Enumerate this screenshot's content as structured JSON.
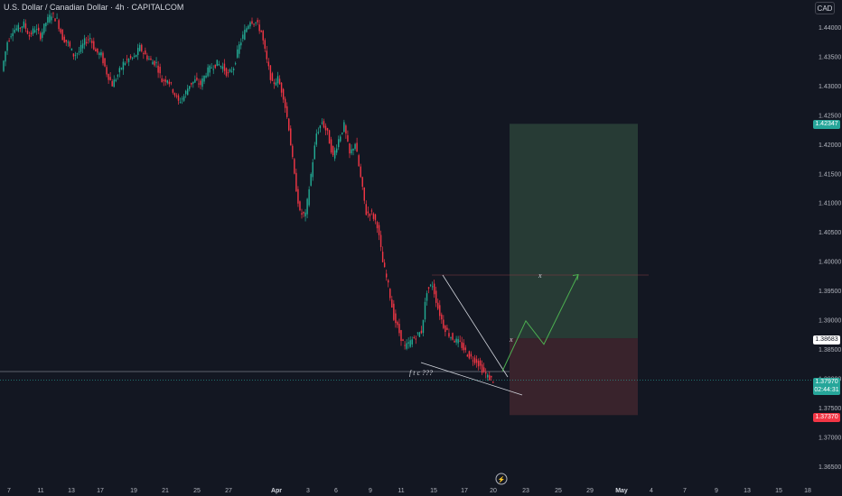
{
  "header": {
    "title": "U.S. Dollar / Canadian Dollar · 4h · CAPITALCOM",
    "currency": "CAD"
  },
  "price_tags": {
    "target": "1.42347",
    "entry": "1.38683",
    "last_price": "1.37970",
    "countdown": "02:44:31",
    "stop": "1.37370"
  },
  "annotations": {
    "pattern_text": "f t c ???",
    "mark_upper": "x",
    "mark_lower": "x"
  },
  "colors": {
    "up": "#22ab94",
    "down": "#f23645",
    "target_zone": "#2a3f37",
    "stop_zone": "#3b242d",
    "forecast": "#4caf50"
  },
  "chart_data": {
    "type": "candlestick",
    "symbol": "USDCAD",
    "interval": "4h",
    "y_ticks": [
      1.44,
      1.435,
      1.43,
      1.425,
      1.42,
      1.415,
      1.41,
      1.405,
      1.4,
      1.395,
      1.39,
      1.385,
      1.38,
      1.375,
      1.37,
      1.365
    ],
    "y_tick_labels": [
      "1.44000",
      "1.43500",
      "1.43000",
      "1.42500",
      "1.42000",
      "1.41500",
      "1.41000",
      "1.40500",
      "1.40000",
      "1.39500",
      "1.39000",
      "1.38500",
      "1.38000",
      "1.37500",
      "1.37000",
      "1.36500"
    ],
    "x_tick_labels": [
      "7",
      "11",
      "13",
      "17",
      "19",
      "21",
      "25",
      "27",
      "Apr",
      "3",
      "6",
      "9",
      "11",
      "15",
      "17",
      "20",
      "23",
      "25",
      "29",
      "May",
      "4",
      "7",
      "9",
      "13",
      "15",
      "18"
    ],
    "close_path": [
      [
        1.4325,
        1.4375,
        1.4395,
        1.4398,
        1.4405,
        1.4385,
        1.4398,
        1.4385,
        1.4408,
        1.4422,
        1.4412,
        1.4382,
        1.4372,
        1.4352,
        1.4358,
        1.4375,
        1.4382,
        1.4358,
        1.4352,
        1.4322,
        1.4302,
        1.4318,
        1.4338,
        1.4345,
        1.4348,
        1.4365,
        1.4352,
        1.4342,
        1.4338,
        1.4308,
        1.4312,
        1.4292,
        1.4272,
        1.4282,
        1.4302,
        1.4308,
        1.4302,
        1.4322,
        1.4332,
        1.4338,
        1.4332,
        1.4318,
        1.4332,
        1.4368,
        1.4392,
        1.4412,
        1.4408,
        1.4392,
        1.4342,
        1.4302,
        1.4312,
        1.4282,
        1.4228,
        1.4145,
        1.4082,
        1.4078,
        1.4148,
        1.4218,
        1.4238,
        1.4218,
        1.4178,
        1.4208,
        1.4232,
        1.4182,
        1.4202,
        1.4142,
        1.4082,
        1.4082,
        1.4062,
        1.3998,
        1.3958,
        1.3905,
        1.3878,
        1.3852,
        1.3862,
        1.3872,
        1.388,
        1.395,
        1.396,
        1.392,
        1.389,
        1.3875,
        1.3865,
        1.386,
        1.3845,
        1.3835,
        1.383,
        1.3815,
        1.3802,
        1.3797
      ]
    ],
    "last_price": 1.3797,
    "target_price": 1.42347,
    "entry_price": 1.38683,
    "stop_price": 1.3737,
    "support_level": 1.3807,
    "forecast_path": [
      1.3812,
      1.3898,
      1.3858,
      1.3977
    ],
    "grid": false
  }
}
